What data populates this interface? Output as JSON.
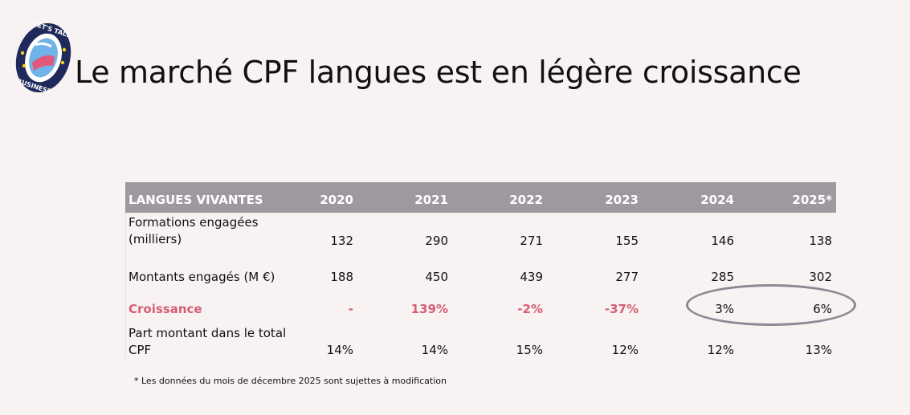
{
  "logo": {
    "top_text": "LET'S TALK",
    "bottom_text": "BUSINESS",
    "colors": {
      "ring": "#1f2a5b",
      "inner": "#ffffff",
      "accent": "#6fb3e8",
      "star": "#f2d21b",
      "pink": "#e4577d"
    }
  },
  "title": "Le marché CPF langues est en légère croissance",
  "table": {
    "header": {
      "label": "LANGUES VIVANTES",
      "years": [
        "2020",
        "2021",
        "2022",
        "2023",
        "2024",
        "2025*"
      ],
      "background": "#9e999f"
    },
    "rows": [
      {
        "label": "Formations engagées (milliers)",
        "values": [
          "132",
          "290",
          "271",
          "155",
          "146",
          "138"
        ]
      },
      {
        "label": "Montants engagés (M €)",
        "values": [
          "188",
          "450",
          "439",
          "277",
          "285",
          "302"
        ]
      },
      {
        "label": "Croissance",
        "values": [
          "-",
          "139%",
          "-2%",
          "-37%",
          "3%",
          "6%"
        ],
        "highlight_color": "#d55f73"
      },
      {
        "label": "Part montant dans le total CPF",
        "values": [
          "14%",
          "14%",
          "15%",
          "12%",
          "12%",
          "13%"
        ]
      }
    ]
  },
  "footnote": "* Les données du mois de décembre 2025 sont sujettes à modification",
  "highlight_circle_color": "#8d8894"
}
